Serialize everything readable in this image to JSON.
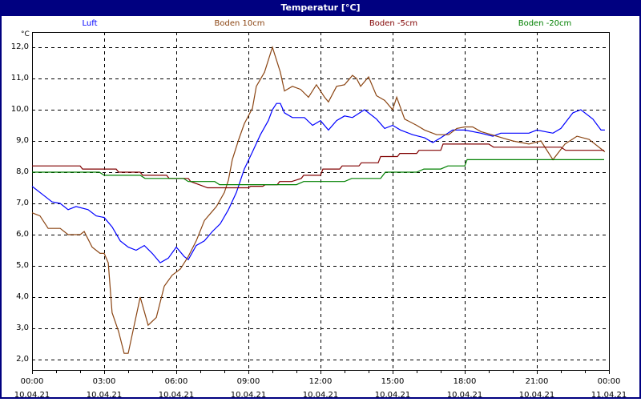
{
  "window": {
    "title": "Temperatur [°C]"
  },
  "chart_data": {
    "type": "line",
    "title": "Temperatur [°C]",
    "xlabel": "",
    "ylabel": "°C",
    "ylim": [
      1.7,
      12.5
    ],
    "xlim_hours": [
      0,
      24
    ],
    "grid": true,
    "legend_position": "top",
    "y_ticks": [
      "2,0",
      "3,0",
      "4,0",
      "5,0",
      "6,0",
      "7,0",
      "8,0",
      "9,0",
      "10,0",
      "11,0",
      "12,0"
    ],
    "x_ticks": [
      {
        "time": "00:00",
        "date": "10.04.21"
      },
      {
        "time": "03:00",
        "date": "10.04.21"
      },
      {
        "time": "06:00",
        "date": "10.04.21"
      },
      {
        "time": "09:00",
        "date": "10.04.21"
      },
      {
        "time": "12:00",
        "date": "10.04.21"
      },
      {
        "time": "15:00",
        "date": "10.04.21"
      },
      {
        "time": "18:00",
        "date": "10.04.21"
      },
      {
        "time": "21:00",
        "date": "10.04.21"
      },
      {
        "time": "00:00",
        "date": "11.04.21"
      }
    ],
    "series": [
      {
        "name": "Luft",
        "color": "#0000ff",
        "hours": [
          0,
          0.5,
          0.83,
          1.17,
          1.5,
          1.83,
          2.33,
          2.67,
          3,
          3.33,
          3.67,
          4,
          4.33,
          4.67,
          5,
          5.33,
          5.67,
          6,
          6.33,
          6.5,
          6.83,
          7.17,
          7.5,
          7.83,
          8.17,
          8.5,
          8.83,
          9.17,
          9.5,
          9.83,
          10,
          10.17,
          10.33,
          10.5,
          10.83,
          11.33,
          11.67,
          12,
          12.33,
          12.67,
          13,
          13.33,
          13.83,
          14.33,
          14.67,
          15,
          15.33,
          15.83,
          16.33,
          16.67,
          17,
          17.5,
          18,
          18.67,
          19.17,
          19.5,
          20.67,
          21,
          21.67,
          22,
          22.5,
          22.83,
          23.33,
          23.67,
          23.83
        ],
        "values": [
          7.55,
          7.25,
          7.05,
          7.0,
          6.8,
          6.9,
          6.8,
          6.6,
          6.55,
          6.25,
          5.8,
          5.6,
          5.5,
          5.65,
          5.4,
          5.1,
          5.25,
          5.6,
          5.3,
          5.2,
          5.65,
          5.8,
          6.1,
          6.35,
          6.8,
          7.35,
          8.1,
          8.65,
          9.2,
          9.65,
          10.0,
          10.2,
          10.2,
          9.9,
          9.75,
          9.75,
          9.5,
          9.65,
          9.35,
          9.65,
          9.8,
          9.75,
          10.0,
          9.7,
          9.4,
          9.5,
          9.35,
          9.2,
          9.1,
          8.95,
          9.1,
          9.35,
          9.35,
          9.25,
          9.15,
          9.25,
          9.25,
          9.35,
          9.25,
          9.4,
          9.9,
          10.0,
          9.7,
          9.35,
          9.35
        ]
      },
      {
        "name": "Boden 10cm",
        "color": "#8b4513",
        "hours": [
          0,
          0.33,
          0.67,
          1.17,
          1.5,
          2,
          2.17,
          2.5,
          2.83,
          3,
          3.17,
          3.33,
          3.6,
          3.83,
          4,
          4.5,
          4.83,
          5.17,
          5.5,
          5.83,
          6.17,
          6.5,
          6.83,
          7.17,
          7.5,
          7.67,
          8,
          8.17,
          8.33,
          8.6,
          8.83,
          9.17,
          9.33,
          9.67,
          10,
          10.33,
          10.5,
          10.83,
          11.17,
          11.5,
          11.83,
          12.17,
          12.33,
          12.67,
          13,
          13.33,
          13.5,
          13.67,
          14,
          14.33,
          14.67,
          15,
          15.17,
          15.5,
          16,
          16.33,
          16.83,
          17.33,
          17.67,
          18,
          18.33,
          18.67,
          19.33,
          20,
          20.67,
          21.17,
          21.67,
          22.17,
          22.67,
          23.17,
          23.83
        ],
        "values": [
          6.7,
          6.6,
          6.2,
          6.2,
          6.0,
          6.0,
          6.1,
          5.6,
          5.4,
          5.4,
          5.1,
          3.5,
          2.9,
          2.2,
          2.2,
          4.0,
          3.1,
          3.35,
          4.35,
          4.7,
          4.9,
          5.3,
          5.8,
          6.45,
          6.75,
          6.9,
          7.35,
          7.75,
          8.4,
          9.05,
          9.55,
          10.05,
          10.75,
          11.2,
          12.0,
          11.2,
          10.6,
          10.75,
          10.65,
          10.4,
          10.8,
          10.4,
          10.25,
          10.75,
          10.8,
          11.1,
          11.0,
          10.75,
          11.05,
          10.45,
          10.3,
          10.0,
          10.4,
          9.7,
          9.5,
          9.35,
          9.2,
          9.2,
          9.4,
          9.45,
          9.45,
          9.3,
          9.15,
          9.0,
          8.9,
          9.0,
          8.4,
          8.9,
          9.15,
          9.05,
          8.65
        ]
      },
      {
        "name": "Boden -5cm",
        "color": "#800000",
        "hours": [
          0,
          2,
          2.1,
          3,
          3.5,
          3.6,
          4.5,
          4.6,
          5.6,
          5.7,
          6.5,
          6.6,
          7.3,
          8.5,
          9.0,
          9.1,
          9.6,
          9.7,
          10.2,
          10.3,
          10.8,
          11.2,
          11.3,
          12.0,
          12.1,
          12.8,
          12.9,
          13.6,
          13.7,
          14.4,
          14.5,
          15.2,
          15.3,
          16,
          16.1,
          17.0,
          17.1,
          18.8,
          19.0,
          19.2,
          19.3,
          21.0,
          21.2,
          22.0,
          22.2,
          23.6,
          23.8
        ],
        "values": [
          8.2,
          8.2,
          8.1,
          8.1,
          8.1,
          8.0,
          8.0,
          7.9,
          7.9,
          7.8,
          7.8,
          7.7,
          7.5,
          7.5,
          7.5,
          7.55,
          7.55,
          7.6,
          7.6,
          7.7,
          7.7,
          7.8,
          7.9,
          7.9,
          8.1,
          8.1,
          8.2,
          8.2,
          8.3,
          8.3,
          8.5,
          8.5,
          8.6,
          8.6,
          8.7,
          8.7,
          8.9,
          8.9,
          8.9,
          8.8,
          8.8,
          8.8,
          8.8,
          8.8,
          8.7,
          8.7,
          8.7
        ]
      },
      {
        "name": "Boden -20cm",
        "color": "#008000",
        "hours": [
          0,
          2.8,
          3.0,
          4.5,
          4.7,
          6.3,
          6.5,
          7.6,
          7.8,
          9.0,
          11.0,
          11.3,
          13.0,
          13.3,
          14.5,
          14.7,
          16.0,
          16.3,
          17.0,
          17.3,
          18.0,
          18.1,
          23.8
        ],
        "values": [
          8.0,
          8.0,
          7.9,
          7.9,
          7.8,
          7.8,
          7.7,
          7.7,
          7.6,
          7.6,
          7.6,
          7.7,
          7.7,
          7.8,
          7.8,
          8.0,
          8.0,
          8.1,
          8.1,
          8.2,
          8.2,
          8.4,
          8.4
        ]
      }
    ]
  },
  "legend": [
    {
      "label": "Luft",
      "color": "#0000ff"
    },
    {
      "label": "Boden 10cm",
      "color": "#8b4513"
    },
    {
      "label": "Boden -5cm",
      "color": "#800000"
    },
    {
      "label": "Boden -20cm",
      "color": "#008000"
    }
  ],
  "axis": {
    "unit": "°C"
  }
}
